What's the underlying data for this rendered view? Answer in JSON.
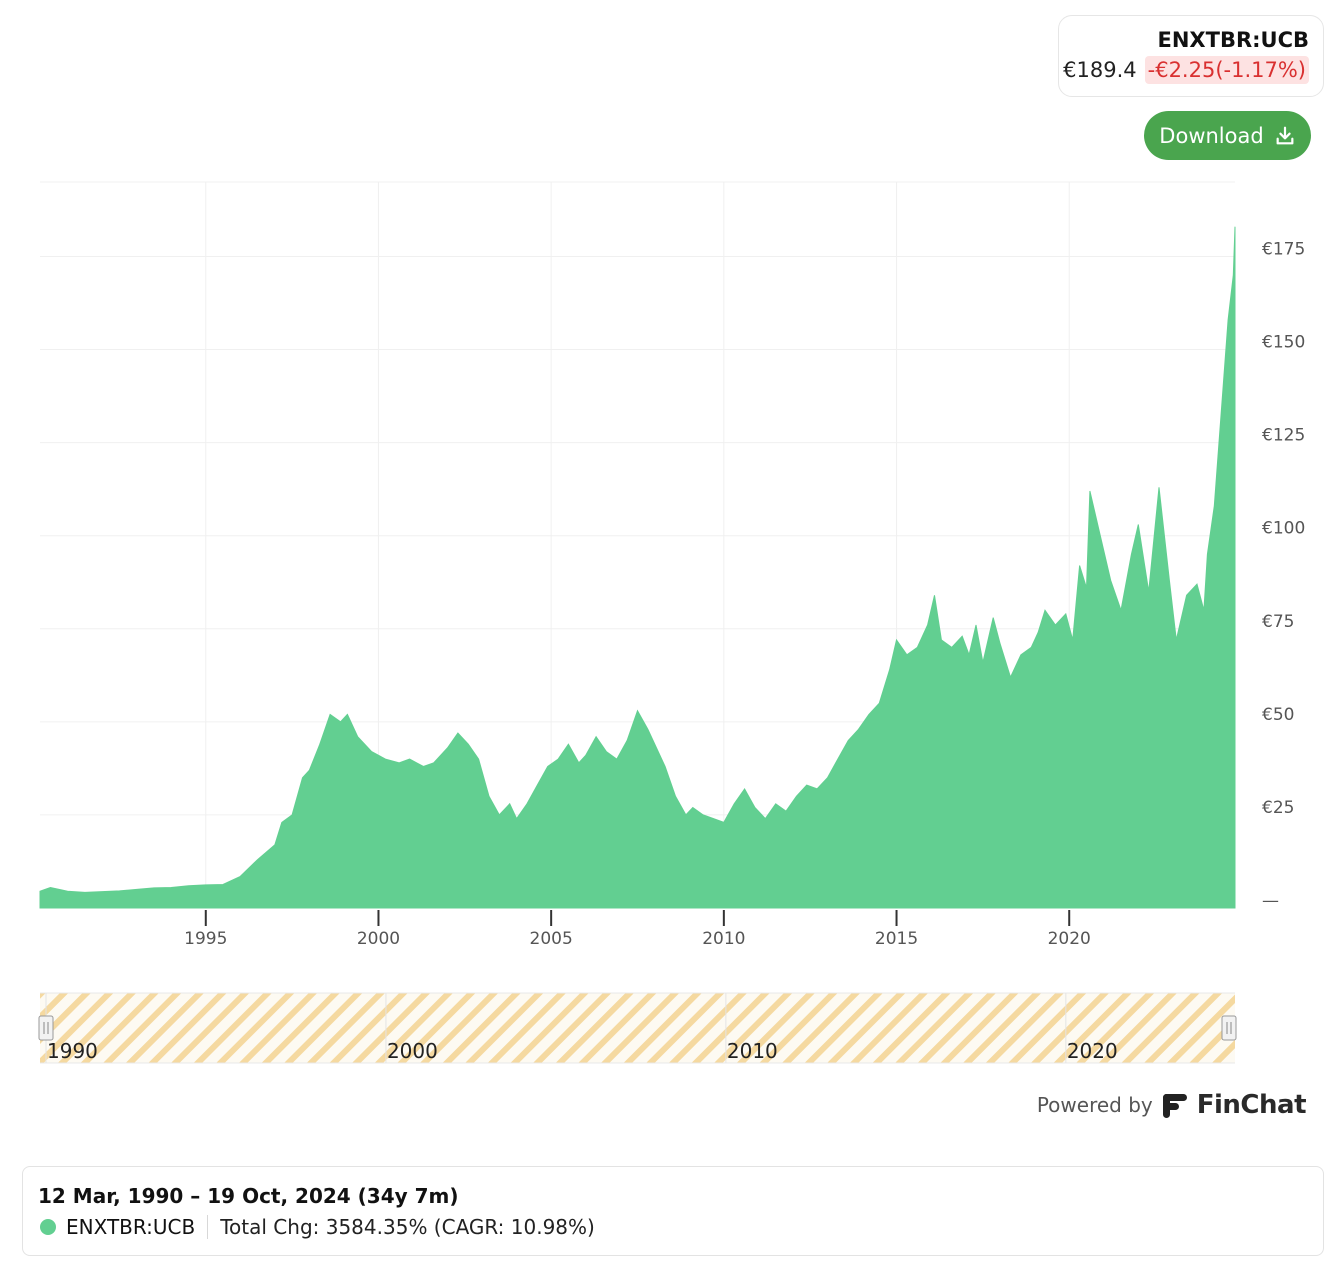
{
  "ticker": {
    "symbol": "ENXTBR:UCB",
    "price": "€189.4",
    "change": "-€2.25(-1.17%)"
  },
  "toolbar": {
    "download_label": "Download"
  },
  "colors": {
    "series": "#62cf91",
    "negative": "#d93030",
    "negative_bg": "#fde2e2",
    "button": "#4aa54e",
    "navigator_stripe": "#f5d9a0",
    "grid": "#f0f0f0"
  },
  "chart_data": {
    "type": "area",
    "title": "",
    "xlabel": "",
    "ylabel": "",
    "x_ticks": [
      "1995",
      "2000",
      "2005",
      "2010",
      "2015",
      "2020"
    ],
    "y_ticks": [
      "—",
      "€25",
      "€50",
      "€75",
      "€100",
      "€125",
      "€150",
      "€175"
    ],
    "ylim": [
      0,
      195
    ],
    "xlim": [
      1990.2,
      2024.8
    ],
    "grid": true,
    "legend": "bottom",
    "series": [
      {
        "name": "ENXTBR:UCB",
        "color": "#62cf91",
        "points": [
          [
            1990.2,
            4.5
          ],
          [
            1990.5,
            5.5
          ],
          [
            1991.0,
            4.5
          ],
          [
            1991.5,
            4.2
          ],
          [
            1992.0,
            4.4
          ],
          [
            1992.5,
            4.6
          ],
          [
            1993.0,
            5.0
          ],
          [
            1993.5,
            5.4
          ],
          [
            1994.0,
            5.5
          ],
          [
            1994.5,
            6.0
          ],
          [
            1995.0,
            6.2
          ],
          [
            1995.5,
            6.3
          ],
          [
            1996.0,
            8.5
          ],
          [
            1996.5,
            13.0
          ],
          [
            1997.0,
            17.0
          ],
          [
            1997.2,
            23.0
          ],
          [
            1997.5,
            25.0
          ],
          [
            1997.8,
            35.0
          ],
          [
            1998.0,
            37.0
          ],
          [
            1998.3,
            44.0
          ],
          [
            1998.6,
            52.0
          ],
          [
            1998.9,
            50.0
          ],
          [
            1999.1,
            52.0
          ],
          [
            1999.4,
            46.0
          ],
          [
            1999.8,
            42.0
          ],
          [
            2000.2,
            40.0
          ],
          [
            2000.6,
            39.0
          ],
          [
            2000.9,
            40.0
          ],
          [
            2001.3,
            38.0
          ],
          [
            2001.6,
            39.0
          ],
          [
            2002.0,
            43.0
          ],
          [
            2002.3,
            47.0
          ],
          [
            2002.6,
            44.0
          ],
          [
            2002.9,
            40.0
          ],
          [
            2003.2,
            30.0
          ],
          [
            2003.5,
            25.0
          ],
          [
            2003.8,
            28.0
          ],
          [
            2004.0,
            24.0
          ],
          [
            2004.3,
            28.0
          ],
          [
            2004.6,
            33.0
          ],
          [
            2004.9,
            38.0
          ],
          [
            2005.2,
            40.0
          ],
          [
            2005.5,
            44.0
          ],
          [
            2005.8,
            39.0
          ],
          [
            2006.0,
            41.0
          ],
          [
            2006.3,
            46.0
          ],
          [
            2006.6,
            42.0
          ],
          [
            2006.9,
            40.0
          ],
          [
            2007.2,
            45.0
          ],
          [
            2007.5,
            53.0
          ],
          [
            2007.8,
            48.0
          ],
          [
            2008.0,
            44.0
          ],
          [
            2008.3,
            38.0
          ],
          [
            2008.6,
            30.0
          ],
          [
            2008.9,
            25.0
          ],
          [
            2009.1,
            27.0
          ],
          [
            2009.4,
            25.0
          ],
          [
            2009.7,
            24.0
          ],
          [
            2010.0,
            23.0
          ],
          [
            2010.3,
            28.0
          ],
          [
            2010.6,
            32.0
          ],
          [
            2010.9,
            27.0
          ],
          [
            2011.2,
            24.0
          ],
          [
            2011.5,
            28.0
          ],
          [
            2011.8,
            26.0
          ],
          [
            2012.1,
            30.0
          ],
          [
            2012.4,
            33.0
          ],
          [
            2012.7,
            32.0
          ],
          [
            2013.0,
            35.0
          ],
          [
            2013.3,
            40.0
          ],
          [
            2013.6,
            45.0
          ],
          [
            2013.9,
            48.0
          ],
          [
            2014.2,
            52.0
          ],
          [
            2014.5,
            55.0
          ],
          [
            2014.8,
            64.0
          ],
          [
            2015.0,
            72.0
          ],
          [
            2015.3,
            68.0
          ],
          [
            2015.6,
            70.0
          ],
          [
            2015.9,
            76.0
          ],
          [
            2016.1,
            84.0
          ],
          [
            2016.3,
            72.0
          ],
          [
            2016.6,
            70.0
          ],
          [
            2016.9,
            73.0
          ],
          [
            2017.1,
            68.0
          ],
          [
            2017.3,
            76.0
          ],
          [
            2017.5,
            66.0
          ],
          [
            2017.8,
            78.0
          ],
          [
            2018.0,
            71.0
          ],
          [
            2018.3,
            62.0
          ],
          [
            2018.6,
            68.0
          ],
          [
            2018.9,
            70.0
          ],
          [
            2019.1,
            74.0
          ],
          [
            2019.3,
            80.0
          ],
          [
            2019.6,
            76.0
          ],
          [
            2019.9,
            79.0
          ],
          [
            2020.1,
            72.0
          ],
          [
            2020.3,
            92.0
          ],
          [
            2020.5,
            86.0
          ],
          [
            2020.6,
            112.0
          ],
          [
            2020.9,
            100.0
          ],
          [
            2021.2,
            88.0
          ],
          [
            2021.5,
            80.0
          ],
          [
            2021.8,
            95.0
          ],
          [
            2022.0,
            103.0
          ],
          [
            2022.3,
            85.0
          ],
          [
            2022.6,
            113.0
          ],
          [
            2022.9,
            88.0
          ],
          [
            2023.1,
            72.0
          ],
          [
            2023.4,
            84.0
          ],
          [
            2023.7,
            87.0
          ],
          [
            2023.9,
            80.0
          ],
          [
            2024.0,
            95.0
          ],
          [
            2024.2,
            108.0
          ],
          [
            2024.4,
            133.0
          ],
          [
            2024.6,
            158.0
          ],
          [
            2024.75,
            170.0
          ],
          [
            2024.8,
            183.0
          ]
        ]
      }
    ],
    "navigator": {
      "labels": [
        "1990",
        "2000",
        "2010",
        "2020"
      ]
    }
  },
  "branding": {
    "powered_by": "Powered by",
    "logo_text": "FinChat"
  },
  "summary": {
    "range": "12 Mar, 1990 – 19 Oct, 2024 (34y 7m)",
    "series_name": "ENXTBR:UCB",
    "total_change": "Total Chg: 3584.35% (CAGR: 10.98%)"
  }
}
